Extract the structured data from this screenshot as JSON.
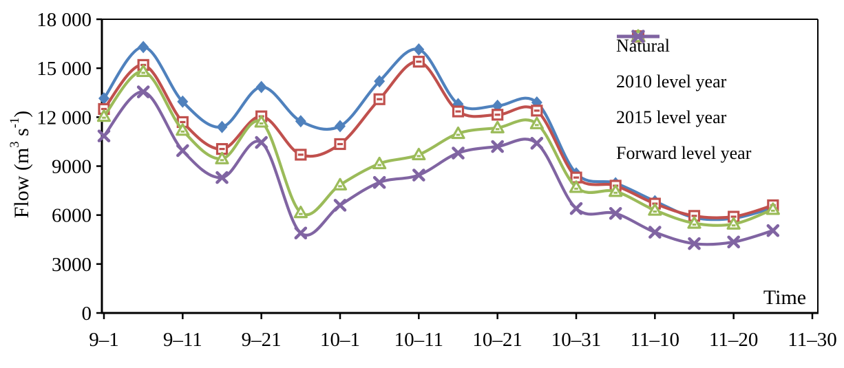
{
  "chart_data": {
    "type": "line",
    "title": "",
    "xlabel": "Time",
    "ylabel_text": "Flow (m3 s-1)",
    "ylabel_parts": {
      "prefix": "Flow (m",
      "sup1": "3",
      "mid": " s",
      "sup2": "-1",
      "suffix": ")"
    },
    "ylim": [
      0,
      18000
    ],
    "x_total_days": 90,
    "grid": false,
    "legend_position": "top-right-inside",
    "y_ticks": [
      {
        "v": 0,
        "label": "0"
      },
      {
        "v": 3000,
        "label": "3000"
      },
      {
        "v": 6000,
        "label": "6000"
      },
      {
        "v": 9000,
        "label": "9000"
      },
      {
        "v": 12000,
        "label": "12 000"
      },
      {
        "v": 15000,
        "label": "15 000"
      },
      {
        "v": 18000,
        "label": "18 000"
      }
    ],
    "x_ticks": [
      {
        "day": 0,
        "label": "9–1"
      },
      {
        "day": 10,
        "label": "9–11"
      },
      {
        "day": 20,
        "label": "9–21"
      },
      {
        "day": 30,
        "label": "10–1"
      },
      {
        "day": 40,
        "label": "10–11"
      },
      {
        "day": 50,
        "label": "10–21"
      },
      {
        "day": 60,
        "label": "10–31"
      },
      {
        "day": 70,
        "label": "11–10"
      },
      {
        "day": 80,
        "label": "11–20"
      },
      {
        "day": 90,
        "label": "11–30"
      }
    ],
    "categories": [
      "9-1",
      "9-6",
      "9-11",
      "9-16",
      "9-21",
      "9-26",
      "10-1",
      "10-6",
      "10-11",
      "10-16",
      "10-21",
      "10-26",
      "10-31",
      "11-5",
      "11-10",
      "11-15",
      "11-20",
      "11-25"
    ],
    "x_days": [
      0,
      5,
      10,
      15,
      20,
      25,
      30,
      35,
      40,
      45,
      50,
      55,
      60,
      65,
      70,
      75,
      80,
      85
    ],
    "series": [
      {
        "name": "Natural",
        "color": "#4F81BD",
        "marker": "diamond",
        "values": [
          13150,
          16300,
          12950,
          11400,
          13850,
          11750,
          11450,
          14200,
          16150,
          12800,
          12700,
          12900,
          8550,
          7950,
          6850,
          5850,
          5800,
          6450
        ]
      },
      {
        "name": "2010 level year",
        "color": "#C0504D",
        "marker": "square",
        "values": [
          12500,
          15200,
          11700,
          10050,
          12050,
          9700,
          10350,
          13100,
          15400,
          12350,
          12150,
          12400,
          8300,
          7800,
          6700,
          5950,
          5900,
          6600
        ]
      },
      {
        "name": "2015 level year",
        "color": "#9BBB59",
        "marker": "triangle",
        "values": [
          12050,
          14800,
          11200,
          9450,
          11700,
          6150,
          7850,
          9150,
          9700,
          11000,
          11350,
          11600,
          7700,
          7450,
          6300,
          5500,
          5450,
          6350
        ]
      },
      {
        "name": "Forward level year",
        "color": "#8064A2",
        "marker": "x",
        "values": [
          10850,
          13550,
          9950,
          8300,
          10450,
          4900,
          6600,
          8000,
          8450,
          9800,
          10200,
          10400,
          6400,
          6100,
          4950,
          4250,
          4350,
          5050
        ]
      }
    ]
  }
}
